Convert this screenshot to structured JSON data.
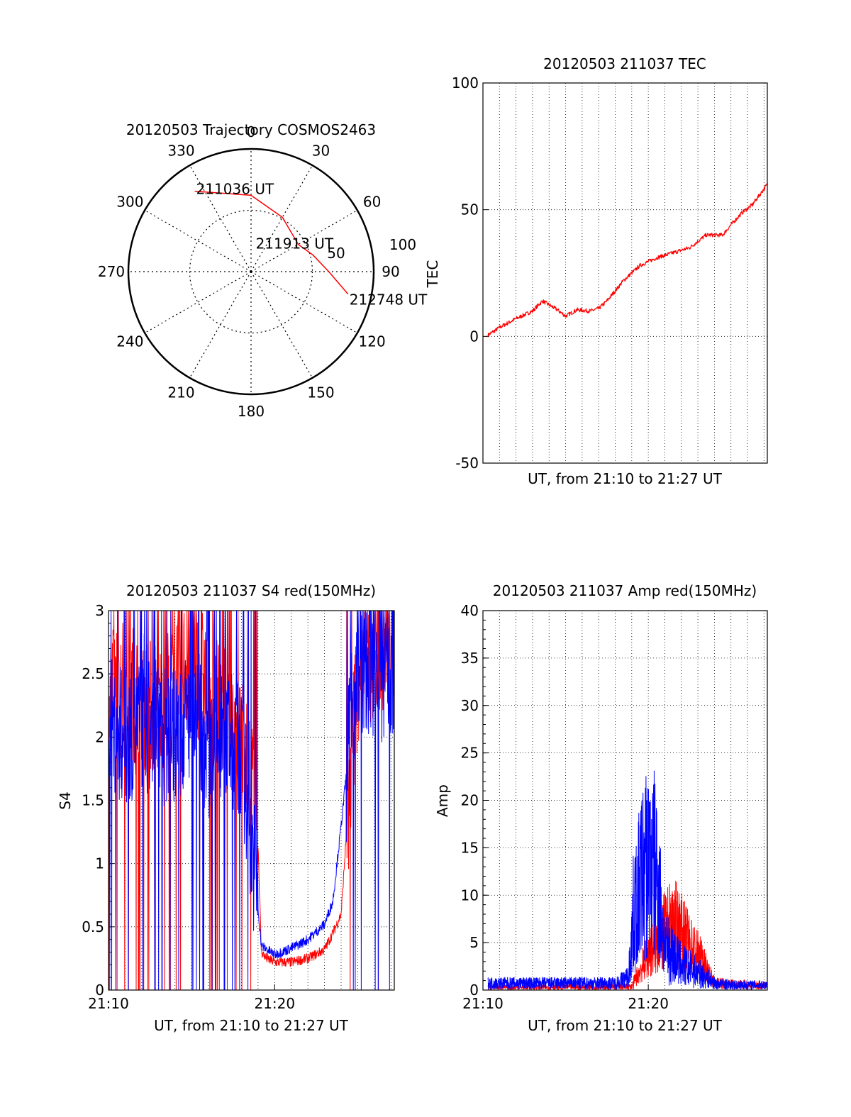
{
  "chart_data": [
    {
      "type": "polar",
      "title": "20120503 Trajectory COSMOS2463",
      "angle_labels": [
        "0",
        "30",
        "60",
        "90",
        "120",
        "150",
        "180",
        "210",
        "240",
        "270",
        "300",
        "330"
      ],
      "radial_labels": [
        "50",
        "100"
      ],
      "trajectory": {
        "color": "#ff0000",
        "points": [
          {
            "azimuth": 325,
            "elevation": 18,
            "label": "211036 UT"
          },
          {
            "azimuth": 0,
            "elevation": 34
          },
          {
            "azimuth": 30,
            "elevation": 44
          },
          {
            "azimuth": 60,
            "elevation": 50,
            "label": "211913 UT"
          },
          {
            "azimuth": 75,
            "elevation": 43
          },
          {
            "azimuth": 90,
            "elevation": 33
          },
          {
            "azimuth": 103,
            "elevation": 17,
            "label": "212748 UT"
          }
        ]
      }
    },
    {
      "type": "line",
      "title": "20120503 211037 TEC",
      "xlabel": "UT, from 21:10 to 21:27 UT",
      "ylabel": "TEC",
      "xlim": [
        0,
        17.2
      ],
      "ylim": [
        -50,
        100
      ],
      "yticks": [
        -50,
        0,
        50,
        100
      ],
      "grid": true,
      "series": [
        {
          "color": "#ff0000",
          "x": [
            0.3,
            1.0,
            2.0,
            3.0,
            3.6,
            4.5,
            5.0,
            5.7,
            6.5,
            7.0,
            7.5,
            8.5,
            9.5,
            10.5,
            11.5,
            12.5,
            13.5,
            14.5,
            15.0,
            15.7,
            16.3,
            17.2
          ],
          "y": [
            0.5,
            3.5,
            7.0,
            10.0,
            14.0,
            10.5,
            8.0,
            10.5,
            10.0,
            11.0,
            14.0,
            22.0,
            28.0,
            31.0,
            33.0,
            35.0,
            40.0,
            40.0,
            44.0,
            49.0,
            52.0,
            60.0
          ]
        }
      ]
    },
    {
      "type": "line",
      "title": "20120503 211037 S4 red(150MHz)",
      "xlabel": "UT, from 21:10 to 21:27 UT",
      "ylabel": "S4",
      "xlim": [
        0,
        17.2
      ],
      "ylim": [
        0,
        3
      ],
      "yticks": [
        "0",
        "0.5",
        "1",
        "1.5",
        "2",
        "2.5",
        "3"
      ],
      "xticks": [
        "21:10",
        "21:20"
      ],
      "grid": true,
      "series": [
        {
          "color": "#ff0000",
          "x": [
            0.0,
            1.0,
            2.0,
            3.0,
            4.0,
            5.0,
            6.0,
            7.0,
            8.0,
            8.9,
            9.2,
            9.5,
            10.0,
            11.0,
            12.0,
            13.0,
            13.5,
            14.0,
            14.5,
            15.0,
            16.0,
            17.2
          ],
          "y": [
            2.3,
            2.4,
            2.3,
            2.2,
            2.5,
            2.6,
            2.4,
            2.2,
            2.0,
            1.6,
            0.3,
            0.25,
            0.22,
            0.22,
            0.25,
            0.32,
            0.45,
            0.6,
            1.6,
            2.5,
            2.7,
            2.8
          ]
        },
        {
          "color": "#0000ff",
          "x": [
            0.0,
            1.0,
            2.0,
            3.0,
            4.0,
            5.0,
            6.0,
            7.0,
            8.0,
            8.6,
            9.0,
            9.2,
            10.0,
            11.0,
            12.0,
            13.0,
            13.5,
            14.0,
            15.0,
            16.0,
            17.2
          ],
          "y": [
            2.1,
            2.0,
            2.1,
            2.0,
            2.0,
            2.2,
            1.9,
            2.0,
            1.9,
            1.2,
            0.65,
            0.35,
            0.28,
            0.33,
            0.4,
            0.52,
            0.7,
            1.3,
            2.6,
            2.5,
            2.5
          ]
        }
      ]
    },
    {
      "type": "line",
      "title": "20120503 211037 Amp red(150MHz)",
      "xlabel": "UT, from 21:10 to 21:27 UT",
      "ylabel": "Amp",
      "xlim": [
        0,
        17.2
      ],
      "ylim": [
        0,
        40
      ],
      "yticks": [
        "0",
        "5",
        "10",
        "15",
        "20",
        "25",
        "30",
        "35",
        "40"
      ],
      "xticks": [
        "21:10",
        "21:20"
      ],
      "grid": true,
      "series": [
        {
          "color": "#ff0000",
          "x": [
            0.3,
            9.0,
            9.3,
            9.6,
            10.0,
            10.5,
            11.0,
            11.5,
            12.0,
            12.5,
            13.0,
            13.5,
            14.0,
            17.2
          ],
          "y": [
            0.3,
            0.4,
            1.5,
            2.5,
            4.0,
            5.0,
            6.5,
            7.5,
            6.5,
            5.0,
            4.0,
            2.5,
            0.8,
            0.5
          ]
        },
        {
          "color": "#0000ff",
          "x": [
            0.3,
            4.0,
            8.0,
            8.8,
            9.2,
            9.6,
            10.0,
            10.5,
            11.0,
            11.5,
            12.0,
            12.5,
            13.0,
            13.5,
            14.0,
            15.0,
            17.2
          ],
          "y": [
            0.8,
            0.8,
            0.8,
            1.5,
            11.0,
            16.0,
            18.0,
            17.0,
            6.0,
            4.0,
            3.0,
            2.5,
            2.0,
            1.5,
            0.8,
            0.6,
            0.6
          ]
        }
      ]
    }
  ]
}
